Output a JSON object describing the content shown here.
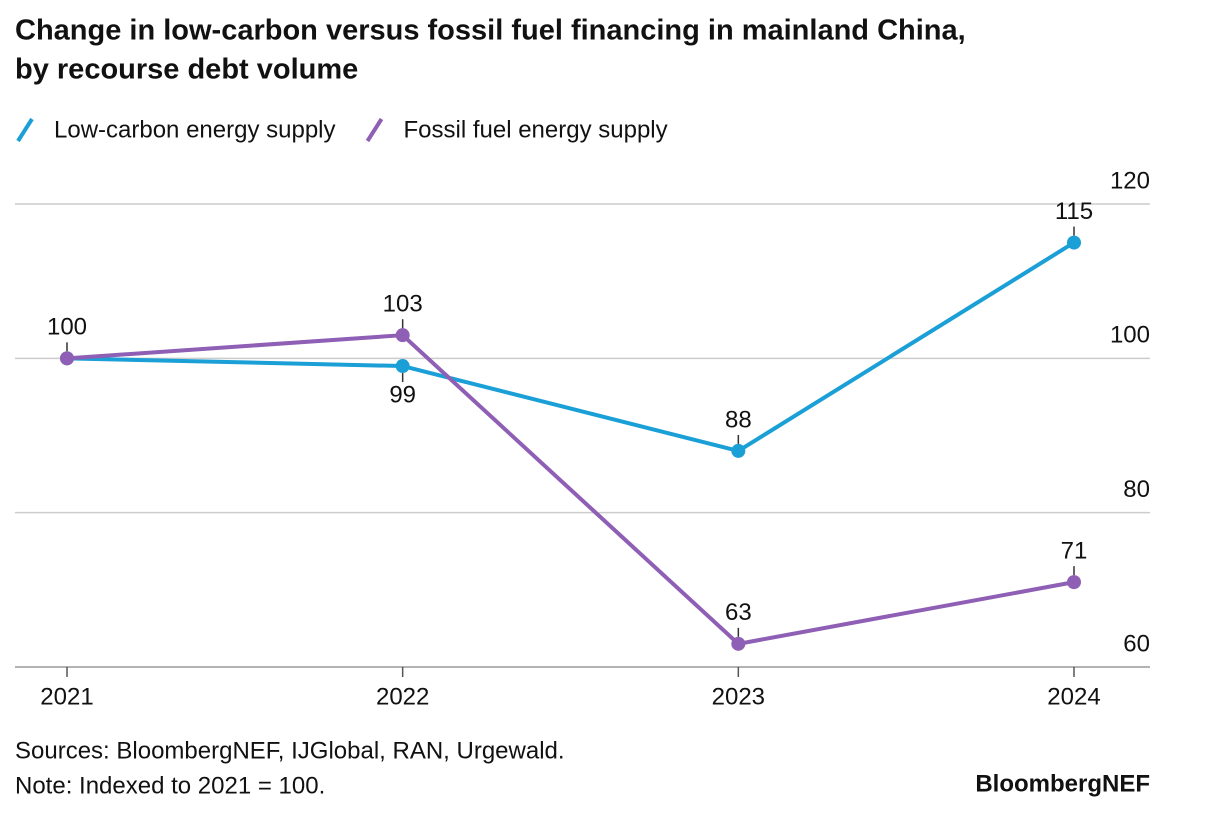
{
  "chart_data": {
    "type": "line",
    "title": "Change in low-carbon versus fossil fuel financing in mainland China,",
    "subtitle": "by recourse debt volume",
    "categories": [
      "2021",
      "2022",
      "2023",
      "2024"
    ],
    "series": [
      {
        "name": "Low-carbon energy supply",
        "color": "#1a9fd6",
        "values": [
          100,
          99,
          88,
          115
        ]
      },
      {
        "name": "Fossil fuel energy supply",
        "color": "#8e5fb5",
        "values": [
          100,
          103,
          63,
          71
        ]
      }
    ],
    "ylim": [
      60,
      120
    ],
    "yticks": [
      60,
      80,
      100,
      120
    ],
    "grid": true,
    "sources": "Sources: BloombergNEF, IJGlobal, RAN, Urgewald.",
    "note": "Note: Indexed to 2021 = 100.",
    "brand": "BloombergNEF"
  }
}
